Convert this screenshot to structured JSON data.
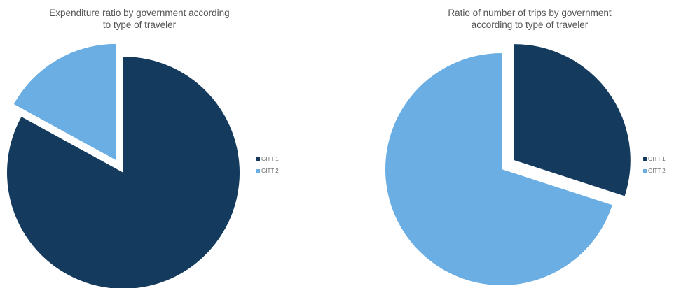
{
  "chart_data": [
    {
      "type": "pie",
      "title": [
        "Expenditure ratio by government according",
        "to type of traveler"
      ],
      "categories": [
        "GITT 1",
        "GITT 2"
      ],
      "values": [
        83,
        17
      ],
      "colors": [
        "#143b5e",
        "#6aaee3"
      ],
      "exploded": "GITT 2",
      "legend": "right"
    },
    {
      "type": "pie",
      "title": [
        "Ratio of number of trips by government",
        "according to type of traveler"
      ],
      "categories": [
        "GITT 1",
        "GITT 2"
      ],
      "values": [
        30,
        70
      ],
      "colors": [
        "#143b5e",
        "#6aaee3"
      ],
      "exploded": "GITT 1",
      "legend": "right"
    }
  ]
}
